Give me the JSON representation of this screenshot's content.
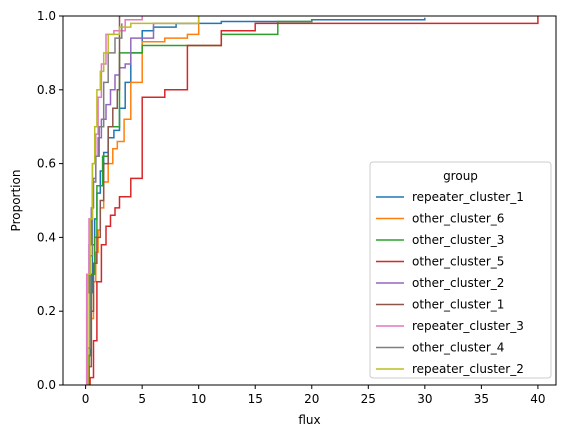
{
  "chart_data": {
    "type": "line",
    "title": "",
    "xlabel": "flux",
    "ylabel": "Proportion",
    "xlim": [
      -2,
      41.6
    ],
    "ylim": [
      0,
      1
    ],
    "x_ticks": [
      0,
      5,
      10,
      15,
      20,
      25,
      30,
      35,
      40
    ],
    "y_ticks": [
      0.0,
      0.2,
      0.4,
      0.6,
      0.8,
      1.0
    ],
    "grid": false,
    "legend_title": "group",
    "legend_position": "lower-right",
    "series": [
      {
        "name": "repeater_cluster_1",
        "color": "#1f77b4",
        "x": [
          0.2,
          0.4,
          0.6,
          0.8,
          1.0,
          1.3,
          1.6,
          2.0,
          2.5,
          3.0,
          3.5,
          4.0,
          5.0,
          6.0,
          8.0,
          12.0,
          20.0,
          30.0
        ],
        "y": [
          0.08,
          0.25,
          0.38,
          0.45,
          0.52,
          0.58,
          0.63,
          0.67,
          0.69,
          0.75,
          0.82,
          0.9,
          0.96,
          0.97,
          0.98,
          0.985,
          0.99,
          0.995
        ]
      },
      {
        "name": "other_cluster_6",
        "color": "#ff7f0e",
        "x": [
          0.3,
          0.5,
          0.7,
          0.9,
          1.1,
          1.3,
          1.6,
          2.0,
          2.4,
          2.8,
          3.4,
          4.0,
          5.0,
          7.0,
          9.0,
          10.0
        ],
        "y": [
          0.08,
          0.18,
          0.28,
          0.36,
          0.42,
          0.48,
          0.55,
          0.6,
          0.64,
          0.66,
          0.72,
          0.82,
          0.93,
          0.94,
          0.95,
          0.99
        ]
      },
      {
        "name": "other_cluster_3",
        "color": "#2ca02c",
        "x": [
          0.3,
          0.5,
          0.8,
          1.0,
          1.5,
          2.0,
          3.0,
          5.0,
          8.0,
          10.0,
          12.0,
          17.0,
          20.0
        ],
        "y": [
          0.08,
          0.3,
          0.4,
          0.54,
          0.62,
          0.7,
          0.9,
          0.92,
          0.92,
          0.92,
          0.95,
          0.985,
          0.99
        ]
      },
      {
        "name": "other_cluster_5",
        "color": "#d62728",
        "x": [
          0.4,
          0.7,
          1.0,
          1.4,
          1.8,
          2.2,
          2.6,
          3.0,
          4.0,
          5.0,
          7.0,
          9.0,
          12.0,
          15.0,
          40.0
        ],
        "y": [
          0.02,
          0.12,
          0.28,
          0.38,
          0.43,
          0.46,
          0.48,
          0.51,
          0.56,
          0.78,
          0.8,
          0.92,
          0.96,
          0.98,
          1.0
        ]
      },
      {
        "name": "other_cluster_2",
        "color": "#9467bd",
        "x": [
          0.1,
          0.3,
          0.5,
          0.7,
          0.9,
          1.1,
          1.4,
          1.8,
          2.2,
          2.6,
          3.0,
          3.5,
          4.0,
          6.0,
          10.0
        ],
        "y": [
          0.25,
          0.38,
          0.48,
          0.56,
          0.62,
          0.67,
          0.72,
          0.76,
          0.8,
          0.84,
          0.86,
          0.87,
          0.94,
          0.98,
          1.0
        ]
      },
      {
        "name": "other_cluster_1",
        "color": "#8c564b",
        "x": [
          0.3,
          0.5,
          0.7,
          1.0,
          1.3,
          1.6,
          2.0,
          2.4,
          2.8,
          3.0
        ],
        "y": [
          0.05,
          0.2,
          0.33,
          0.4,
          0.5,
          0.6,
          0.7,
          0.75,
          0.8,
          1.0
        ]
      },
      {
        "name": "repeater_cluster_3",
        "color": "#e377c2",
        "x": [
          0.1,
          0.3,
          0.6,
          0.9,
          1.1,
          1.4,
          1.8,
          2.5,
          3.5,
          5.0
        ],
        "y": [
          0.3,
          0.45,
          0.6,
          0.68,
          0.78,
          0.87,
          0.95,
          0.96,
          0.99,
          1.0
        ]
      },
      {
        "name": "other_cluster_4",
        "color": "#7f7f7f",
        "x": [
          0.2,
          0.4,
          0.6,
          0.9,
          1.2,
          1.6,
          2.0,
          2.6,
          3.2
        ],
        "y": [
          0.1,
          0.35,
          0.55,
          0.62,
          0.7,
          0.82,
          0.9,
          0.94,
          0.98
        ]
      },
      {
        "name": "repeater_cluster_2",
        "color": "#bcbd22",
        "x": [
          0.2,
          0.4,
          0.6,
          0.8,
          1.0,
          1.3,
          1.6,
          2.0,
          3.0,
          4.0,
          10.0
        ],
        "y": [
          0.3,
          0.45,
          0.6,
          0.7,
          0.8,
          0.85,
          0.9,
          0.95,
          0.97,
          0.98,
          1.0
        ]
      }
    ]
  }
}
